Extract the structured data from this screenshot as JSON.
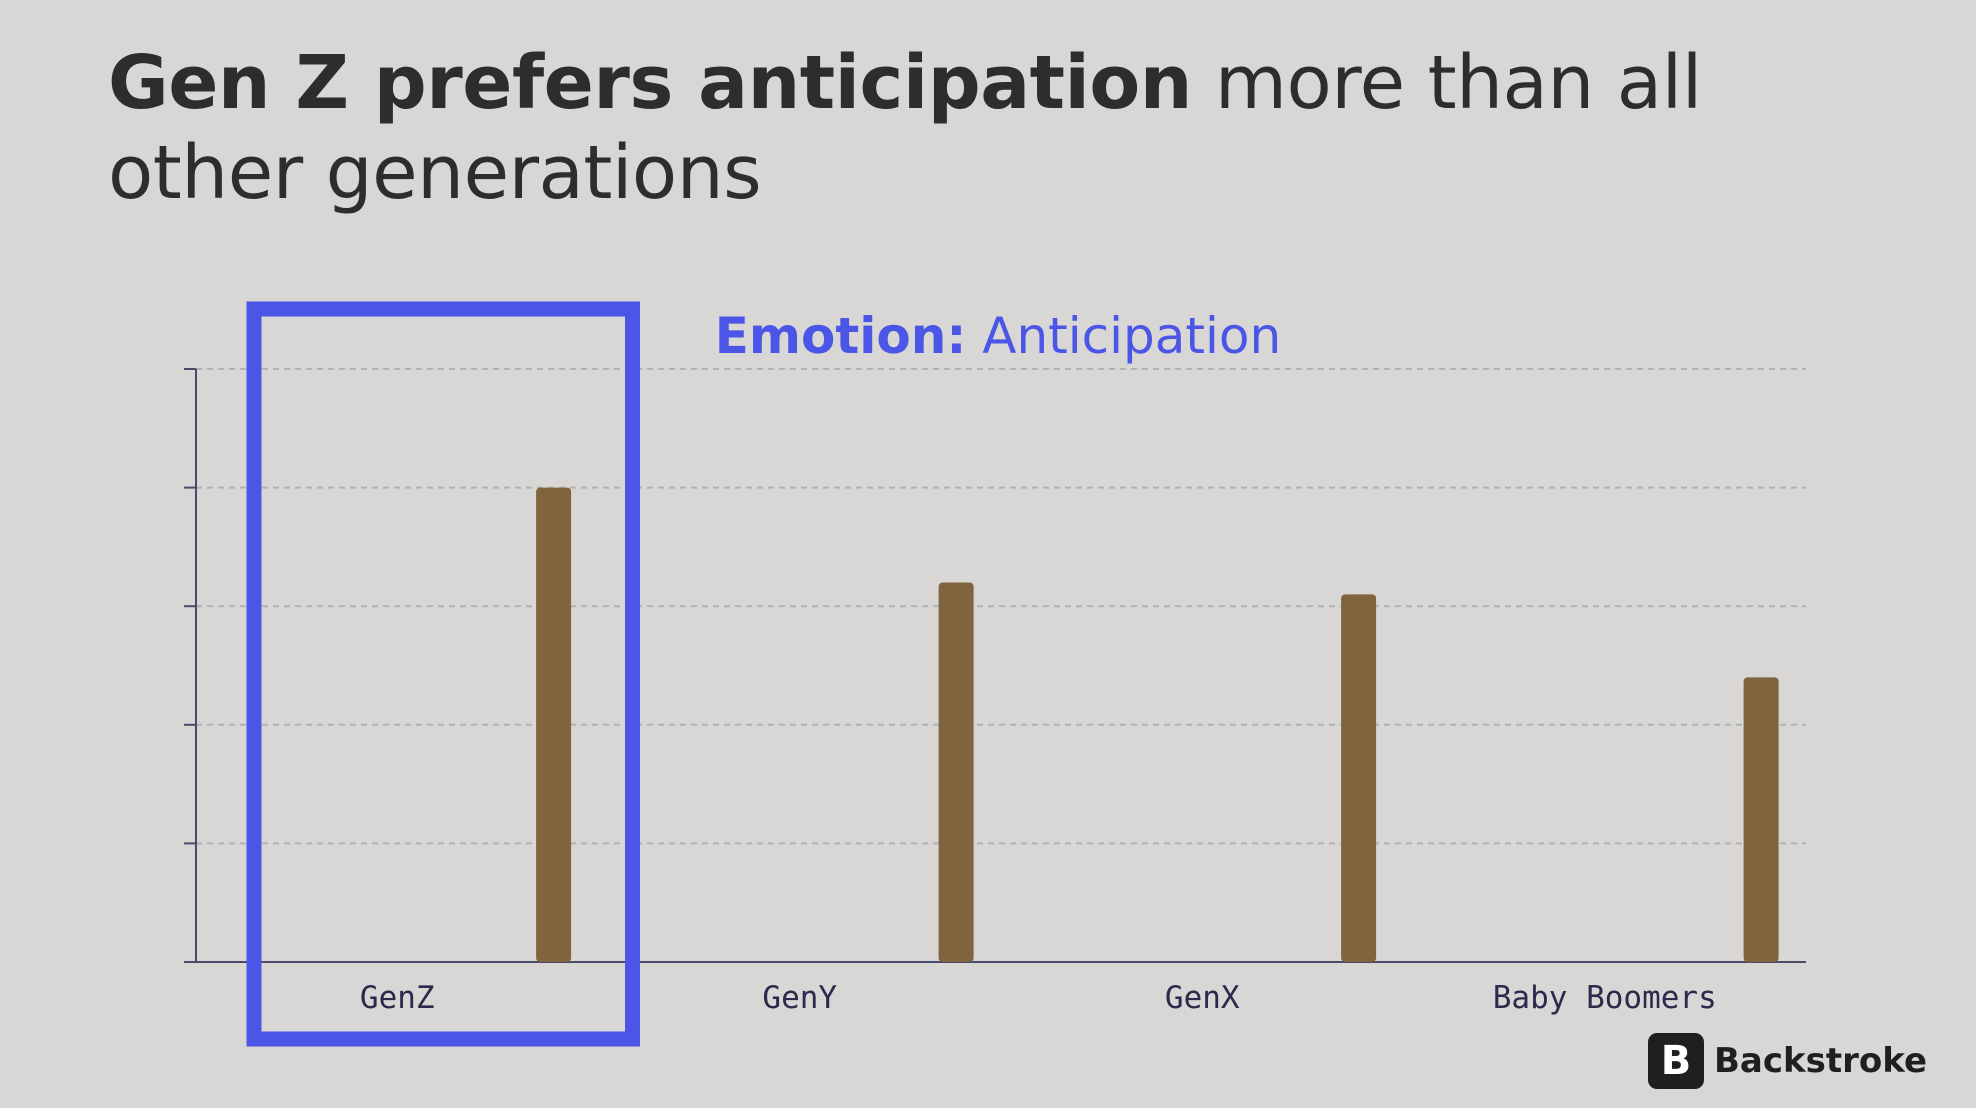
{
  "heading": {
    "bold": "Gen Z prefers anticipation",
    "rest": " more than all other generations"
  },
  "chart_data": {
    "type": "bar",
    "title_bold": "Emotion:",
    "title_rest": " Anticipation",
    "categories": [
      "GenZ",
      "GenY",
      "GenX",
      "Baby Boomers"
    ],
    "values": [
      80,
      64,
      62,
      48
    ],
    "ylim": [
      0,
      100
    ],
    "grid": true,
    "highlight_category": "GenZ",
    "xlabel": "",
    "ylabel": ""
  },
  "colors": {
    "bar": "#80643e",
    "highlight": "#4b55e6",
    "chart_title": "#4b55e6",
    "grid": "#b2b2b2",
    "axis": "#4a4a6a"
  },
  "brand": {
    "icon_glyph": "B",
    "name": "Backstroke"
  }
}
